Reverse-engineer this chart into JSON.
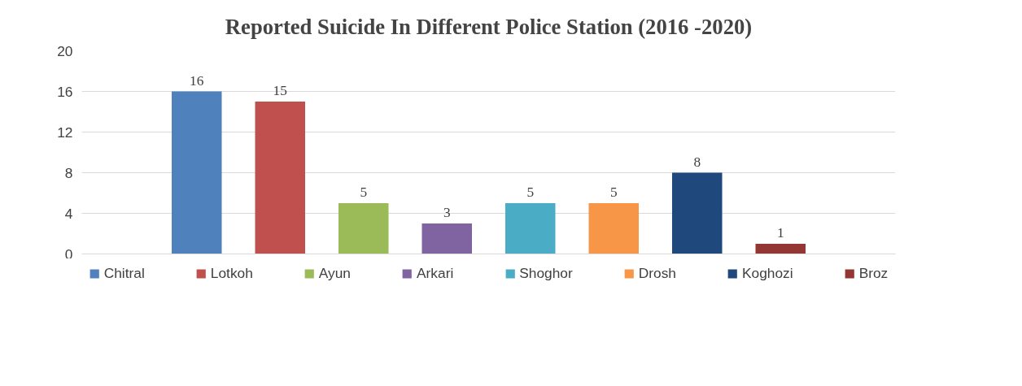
{
  "chart_data": {
    "type": "bar",
    "title": "Reported Suicide In Different Police Station (2016 -2020)",
    "categories": [
      null
    ],
    "series": [
      {
        "name": "Chitral",
        "color": "#4f81bd",
        "values": [
          16
        ]
      },
      {
        "name": "Lotkoh",
        "color": "#c0504d",
        "values": [
          15
        ]
      },
      {
        "name": "Ayun",
        "color": "#9bbb59",
        "values": [
          5
        ]
      },
      {
        "name": "Arkari",
        "color": "#8064a2",
        "values": [
          3
        ]
      },
      {
        "name": "Shoghor",
        "color": "#4bacc6",
        "values": [
          5
        ]
      },
      {
        "name": "Drosh",
        "color": "#f79646",
        "values": [
          5
        ]
      },
      {
        "name": "Koghozi",
        "color": "#1f497d",
        "values": [
          8
        ]
      },
      {
        "name": "Broz",
        "color": "#943634",
        "values": [
          1
        ]
      }
    ],
    "ylim": [
      0,
      20
    ],
    "yticks": [
      0,
      4,
      8,
      12,
      16,
      20
    ],
    "grid": "y",
    "legend": "bottom",
    "data_labels": true
  }
}
